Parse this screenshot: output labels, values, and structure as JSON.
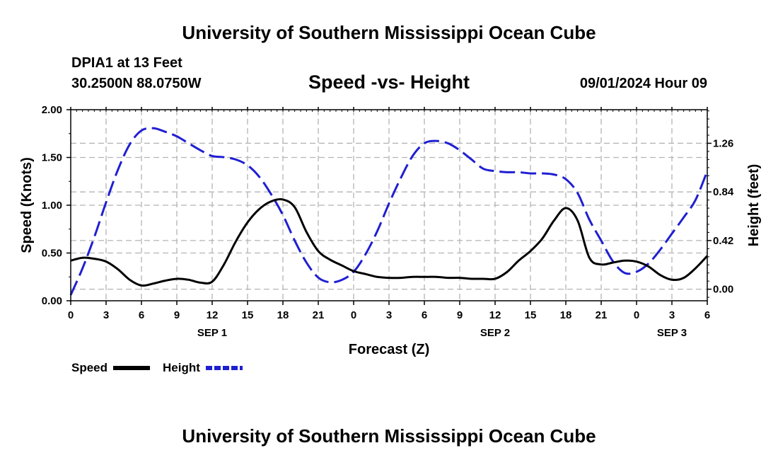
{
  "page": {
    "top_title": "University of Southern Mississippi Ocean Cube",
    "bottom_title": "University of Southern Mississippi Ocean Cube",
    "station_line": "DPIA1 at 13 Feet",
    "coords_line": "30.2500N  88.0750W",
    "date_line": "09/01/2024 Hour 09"
  },
  "chart_data": {
    "type": "line",
    "title": "Speed -vs- Height",
    "xlabel": "Forecast (Z)",
    "ylabel": "Speed (Knots)",
    "y2label": "Height (feet)",
    "xlim": [
      0,
      54
    ],
    "ylim": [
      0,
      2.0
    ],
    "y2lim": [
      -0.1,
      1.55
    ],
    "x_ticks": [
      0,
      3,
      6,
      9,
      12,
      15,
      18,
      21,
      24,
      27,
      30,
      33,
      36,
      39,
      42,
      45,
      48,
      51,
      54
    ],
    "x_tick_labels": [
      "0",
      "3",
      "6",
      "9",
      "12",
      "15",
      "18",
      "21",
      "0",
      "3",
      "6",
      "9",
      "12",
      "15",
      "18",
      "21",
      "0",
      "3",
      "6"
    ],
    "day_labels": [
      {
        "x": 12,
        "label": "SEP 1"
      },
      {
        "x": 36,
        "label": "SEP 2"
      },
      {
        "x": 51,
        "label": "SEP 3"
      }
    ],
    "y_ticks": [
      0,
      0.5,
      1.0,
      1.5,
      2.0
    ],
    "y_tick_labels": [
      "0.00",
      "0.50",
      "1.00",
      "1.50",
      "2.00"
    ],
    "y2_ticks": [
      0,
      0.42,
      0.84,
      1.26
    ],
    "y2_tick_labels": [
      "0.00",
      "0.42",
      "0.84",
      "1.26"
    ],
    "grid": true,
    "legend_position": "bottom-left",
    "series": [
      {
        "name": "Speed",
        "axis": "left",
        "color": "#000000",
        "style": "solid",
        "x": [
          0,
          1,
          2,
          3,
          4,
          5,
          6,
          7,
          8,
          9,
          10,
          11,
          12,
          13,
          14,
          15,
          16,
          17,
          18,
          19,
          20,
          21,
          22,
          23,
          24,
          25,
          26,
          27,
          28,
          29,
          30,
          31,
          32,
          33,
          34,
          35,
          36,
          37,
          38,
          39,
          40,
          41,
          42,
          43,
          44,
          45,
          46,
          47,
          48,
          49,
          50,
          51,
          52,
          53,
          54
        ],
        "values": [
          0.42,
          0.45,
          0.44,
          0.41,
          0.33,
          0.22,
          0.16,
          0.18,
          0.21,
          0.23,
          0.22,
          0.19,
          0.2,
          0.38,
          0.62,
          0.82,
          0.96,
          1.04,
          1.06,
          0.98,
          0.72,
          0.52,
          0.43,
          0.37,
          0.31,
          0.28,
          0.25,
          0.24,
          0.24,
          0.25,
          0.25,
          0.25,
          0.24,
          0.24,
          0.23,
          0.23,
          0.23,
          0.3,
          0.42,
          0.52,
          0.65,
          0.84,
          0.97,
          0.84,
          0.45,
          0.38,
          0.4,
          0.42,
          0.41,
          0.36,
          0.27,
          0.22,
          0.24,
          0.34,
          0.47
        ]
      },
      {
        "name": "Height",
        "axis": "right",
        "color": "#1f1fd2",
        "style": "dashed",
        "x": [
          0,
          1,
          2,
          3,
          4,
          5,
          6,
          7,
          8,
          9,
          10,
          11,
          12,
          13,
          14,
          15,
          16,
          17,
          18,
          19,
          20,
          21,
          22,
          23,
          24,
          25,
          26,
          27,
          28,
          29,
          30,
          31,
          32,
          33,
          34,
          35,
          36,
          37,
          38,
          39,
          40,
          41,
          42,
          43,
          44,
          45,
          46,
          47,
          48,
          49,
          50,
          51,
          52,
          53,
          54
        ],
        "values": [
          -0.05,
          0.18,
          0.45,
          0.75,
          1.03,
          1.25,
          1.37,
          1.39,
          1.36,
          1.32,
          1.26,
          1.2,
          1.15,
          1.14,
          1.12,
          1.07,
          0.97,
          0.82,
          0.64,
          0.42,
          0.23,
          0.1,
          0.06,
          0.08,
          0.15,
          0.3,
          0.5,
          0.74,
          0.96,
          1.15,
          1.26,
          1.28,
          1.26,
          1.2,
          1.12,
          1.04,
          1.02,
          1.01,
          1.01,
          1.0,
          1.0,
          0.99,
          0.95,
          0.83,
          0.6,
          0.42,
          0.24,
          0.14,
          0.15,
          0.22,
          0.34,
          0.48,
          0.62,
          0.77,
          1.02
        ]
      }
    ]
  }
}
